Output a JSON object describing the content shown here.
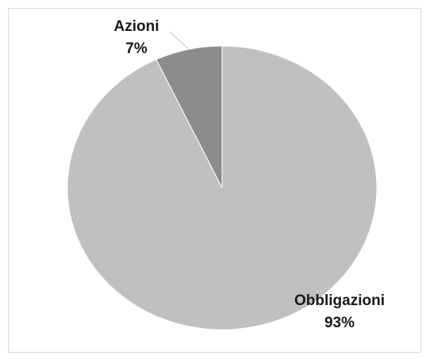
{
  "chart_data": {
    "type": "pie",
    "categories": [
      "Obbligazioni",
      "Azioni"
    ],
    "values": [
      93,
      7
    ],
    "value_labels": [
      "93%",
      "7%"
    ],
    "colors": [
      "#c0c0c0",
      "#8c8c8c"
    ]
  }
}
